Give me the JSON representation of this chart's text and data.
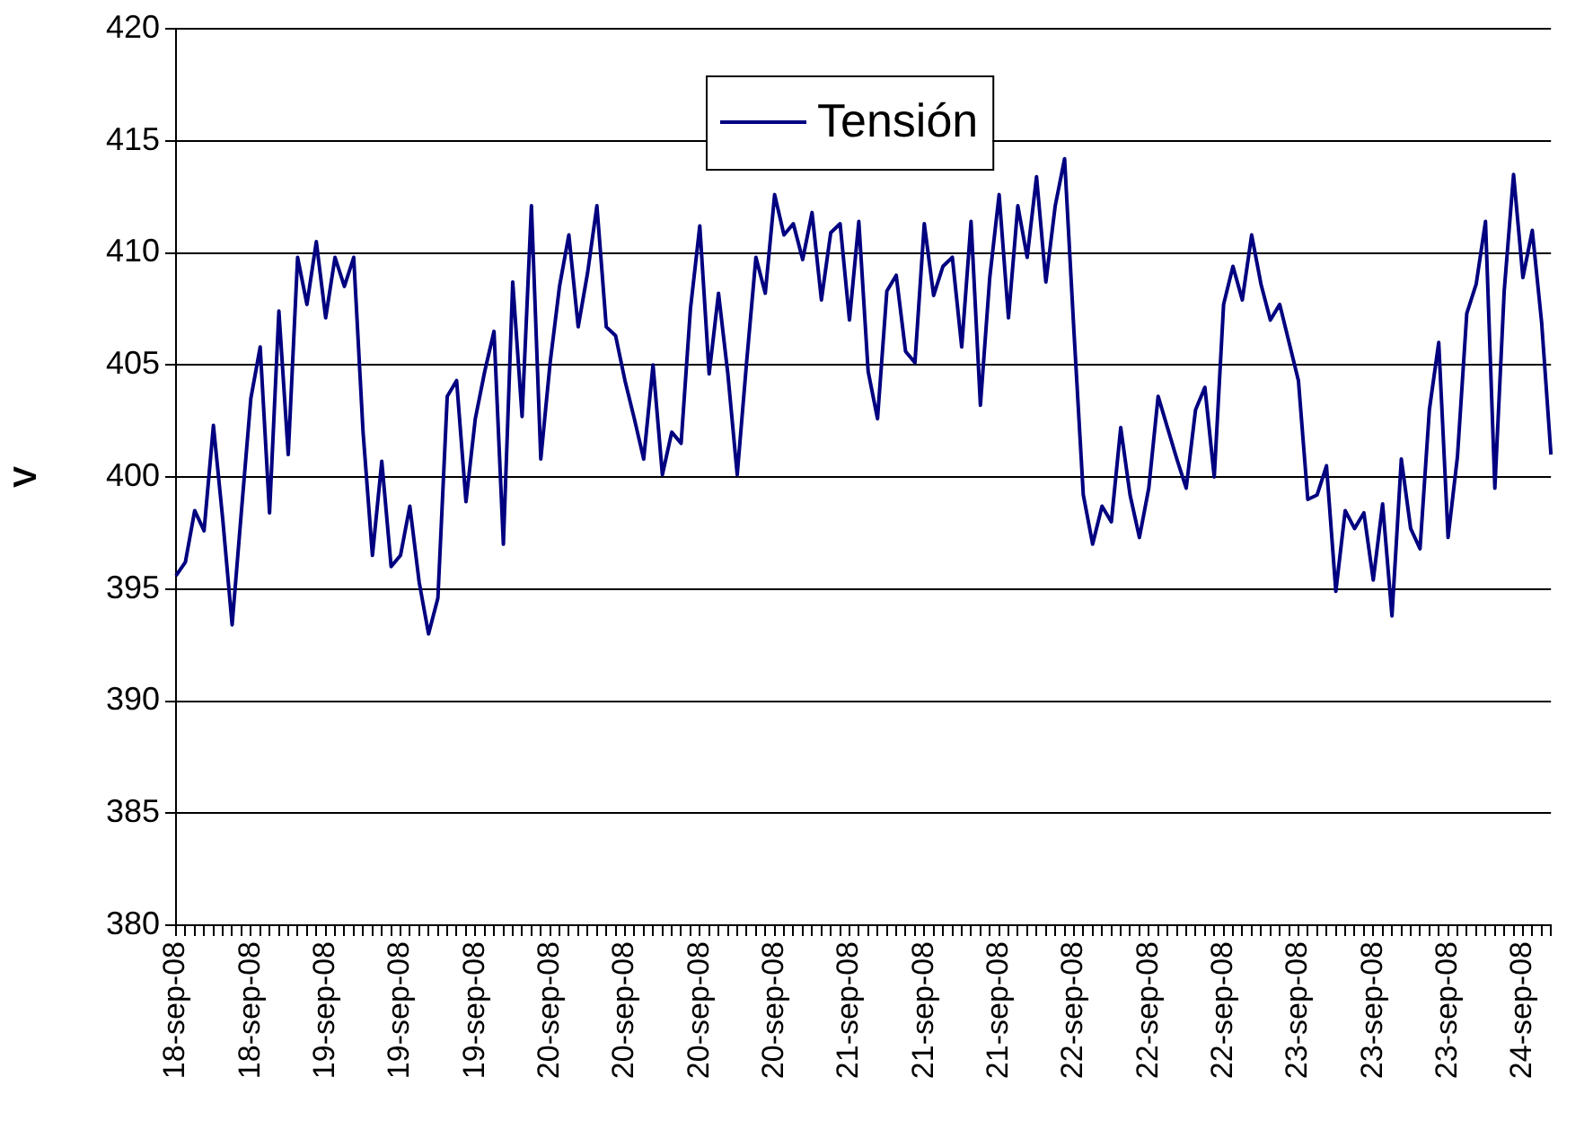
{
  "chart_data": {
    "type": "line",
    "ylabel": "V",
    "categories": [
      "18-sep-08",
      null,
      null,
      null,
      null,
      null,
      null,
      null,
      "18-sep-08",
      null,
      null,
      null,
      null,
      null,
      null,
      null,
      "19-sep-08",
      null,
      null,
      null,
      null,
      null,
      null,
      null,
      "19-sep-08",
      null,
      null,
      null,
      null,
      null,
      null,
      null,
      "19-sep-08",
      null,
      null,
      null,
      null,
      null,
      null,
      null,
      "20-sep-08",
      null,
      null,
      null,
      null,
      null,
      null,
      null,
      "20-sep-08",
      null,
      null,
      null,
      null,
      null,
      null,
      null,
      "20-sep-08",
      null,
      null,
      null,
      null,
      null,
      null,
      null,
      "20-sep-08",
      null,
      null,
      null,
      null,
      null,
      null,
      null,
      "21-sep-08",
      null,
      null,
      null,
      null,
      null,
      null,
      null,
      "21-sep-08",
      null,
      null,
      null,
      null,
      null,
      null,
      null,
      "21-sep-08",
      null,
      null,
      null,
      null,
      null,
      null,
      null,
      "22-sep-08",
      null,
      null,
      null,
      null,
      null,
      null,
      null,
      "22-sep-08",
      null,
      null,
      null,
      null,
      null,
      null,
      null,
      "22-sep-08",
      null,
      null,
      null,
      null,
      null,
      null,
      null,
      "23-sep-08",
      null,
      null,
      null,
      null,
      null,
      null,
      null,
      "23-sep-08",
      null,
      null,
      null,
      null,
      null,
      null,
      null,
      "23-sep-08",
      null,
      null,
      null,
      null,
      null,
      null,
      null,
      "24-sep-08",
      null,
      null,
      null
    ],
    "series": [
      {
        "name": "Tensión",
        "color": "#000080",
        "values": [
          395.6,
          396.2,
          398.5,
          397.6,
          402.3,
          398.1,
          393.4,
          398.5,
          403.5,
          405.8,
          398.4,
          407.4,
          401,
          409.8,
          407.7,
          410.5,
          407.1,
          409.8,
          408.5,
          409.8,
          402,
          396.5,
          400.7,
          396,
          396.5,
          398.7,
          395.3,
          393,
          394.6,
          403.6,
          404.3,
          398.9,
          402.6,
          404.7,
          406.5,
          397,
          408.7,
          402.7,
          412.1,
          400.8,
          405.1,
          408.5,
          410.8,
          406.7,
          409.1,
          412.1,
          406.7,
          406.3,
          404.3,
          402.6,
          400.8,
          405,
          400.1,
          402,
          401.5,
          407.5,
          411.2,
          404.6,
          408.2,
          404.6,
          400.1,
          405.1,
          409.8,
          408.2,
          412.6,
          410.8,
          411.3,
          409.7,
          411.8,
          407.9,
          410.9,
          411.3,
          407,
          411.4,
          404.7,
          402.6,
          408.3,
          409,
          405.6,
          405.1,
          411.3,
          408.1,
          409.4,
          409.8,
          405.8,
          411.4,
          403.2,
          408.9,
          412.6,
          407.1,
          412.1,
          409.8,
          413.4,
          408.7,
          412.1,
          414.2,
          406.5,
          399.2,
          397,
          398.7,
          398,
          402.2,
          399.2,
          397.3,
          399.5,
          403.6,
          402.2,
          400.8,
          399.5,
          403,
          404,
          400,
          407.7,
          409.4,
          407.9,
          410.8,
          408.6,
          407,
          407.7,
          406,
          404.3,
          399,
          399.2,
          400.5,
          394.9,
          398.5,
          397.7,
          398.4,
          395.4,
          398.8,
          393.8,
          400.8,
          397.7,
          396.8,
          403,
          406,
          397.3,
          400.9,
          407.3,
          408.6,
          411.4,
          399.5,
          408.3,
          413.5,
          408.9,
          411,
          406.9,
          401
        ]
      }
    ],
    "ylim": [
      380,
      420
    ],
    "yticks": [
      380,
      385,
      390,
      395,
      400,
      405,
      410,
      415,
      420
    ],
    "grid": "y",
    "legend": "top"
  }
}
